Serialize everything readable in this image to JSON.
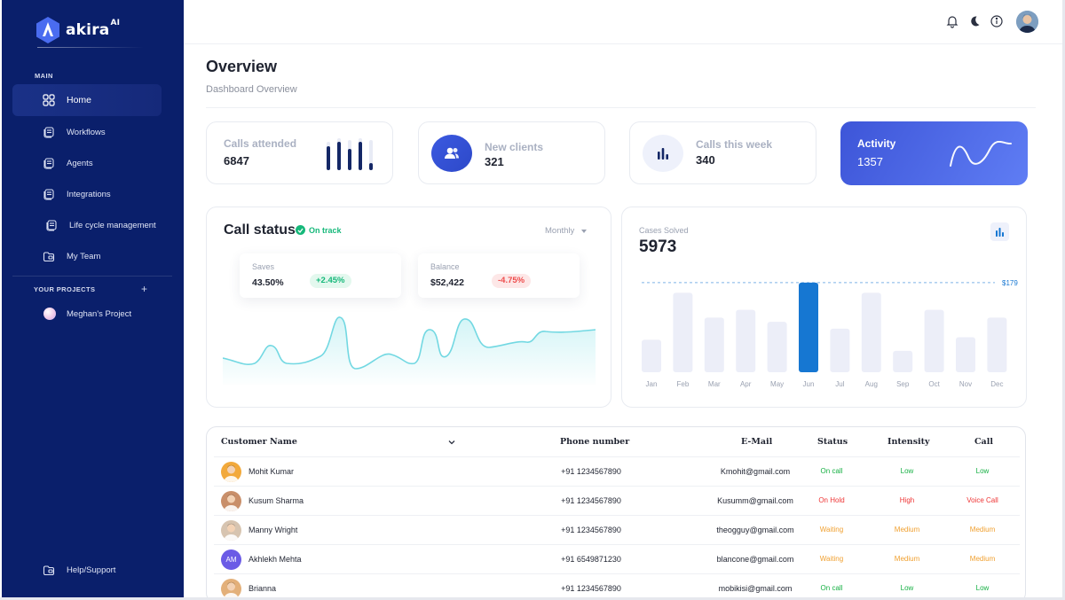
{
  "brand": {
    "name": "akira",
    "sup": "AI"
  },
  "sidebar": {
    "main_label": "MAIN",
    "items": [
      {
        "label": "Home",
        "icon": "grid-icon"
      },
      {
        "label": "Workflows",
        "icon": "document-stack-icon"
      },
      {
        "label": "Agents",
        "icon": "document-stack-icon"
      },
      {
        "label": "Integrations",
        "icon": "document-stack-icon"
      },
      {
        "label": "Life cycle management",
        "icon": "document-stack-icon"
      },
      {
        "label": "My Team",
        "icon": "folder-icon"
      }
    ],
    "projects_label": "YOUR PROJECTS",
    "add_symbol": "+",
    "project": {
      "label": "Meghan's Project"
    },
    "help": {
      "label": "Help/Support"
    }
  },
  "header": {
    "title": "Overview",
    "subtitle": "Dashboard Overview"
  },
  "stats": [
    {
      "label": "Calls attended",
      "value": "6847"
    },
    {
      "label": "New clients",
      "value": "321"
    },
    {
      "label": "Calls this week",
      "value": "340"
    },
    {
      "label": "Activity",
      "value": "1357"
    }
  ],
  "call_status": {
    "title": "Call status",
    "badge": "On track",
    "period": "Monthly",
    "saves": {
      "label": "Saves",
      "value": "43.50%",
      "change": "+2.45%"
    },
    "balance": {
      "label": "Balance",
      "value": "$52,422",
      "change": "-4.75%"
    }
  },
  "cases": {
    "label": "Cases Solved",
    "value": "5973",
    "target_label": "$179"
  },
  "chart_data": {
    "type": "bar",
    "categories": [
      "Jan",
      "Feb",
      "Mar",
      "Apr",
      "May",
      "Jun",
      "Jul",
      "Aug",
      "Sep",
      "Oct",
      "Nov",
      "Dec"
    ],
    "values": [
      38,
      93,
      64,
      73,
      59,
      105,
      51,
      93,
      25,
      73,
      41,
      64
    ],
    "highlight_index": 5,
    "reference_line": 105,
    "reference_label": "$179",
    "ylim": [
      0,
      110
    ],
    "accent": "#1677d2",
    "bar_color": "#eceef8"
  },
  "table": {
    "columns": [
      "Customer Name",
      "Phone number",
      "E-Mail",
      "Status",
      "Intensity",
      "Call"
    ],
    "rows": [
      {
        "name": "Mohit Kumar",
        "phone": "+91 1234567890",
        "email": "Kmohit@gmail.com",
        "status": "On call",
        "intensity": "Low",
        "call": "Low",
        "tone": "green",
        "avatar_color": "#f2a93b",
        "initials": ""
      },
      {
        "name": "Kusum Sharma",
        "phone": "+91 1234567890",
        "email": "Kusumm@gmail.com",
        "status": "On Hold",
        "intensity": "High",
        "call": "Voice Call",
        "tone": "red",
        "avatar_color": "#c98f6a",
        "initials": ""
      },
      {
        "name": "Manny Wright",
        "phone": "+91 1234567890",
        "email": "theogguy@gmail.com",
        "status": "Waiting",
        "intensity": "Medium",
        "call": "Medium",
        "tone": "orange",
        "avatar_color": "#d7c4b0",
        "initials": ""
      },
      {
        "name": "Akhlekh Mehta",
        "phone": "+91 6549871230",
        "email": "blancone@gmail.com",
        "status": "Waiting",
        "intensity": "Medium",
        "call": "Medium",
        "tone": "orange",
        "avatar_color": "#6b5be6",
        "initials": "AM"
      },
      {
        "name": "Brianna",
        "phone": "+91 1234567890",
        "email": "mobikisi@gmail.com",
        "status": "On call",
        "intensity": "Low",
        "call": "Low",
        "tone": "green",
        "avatar_color": "#e3b07a",
        "initials": ""
      }
    ]
  }
}
